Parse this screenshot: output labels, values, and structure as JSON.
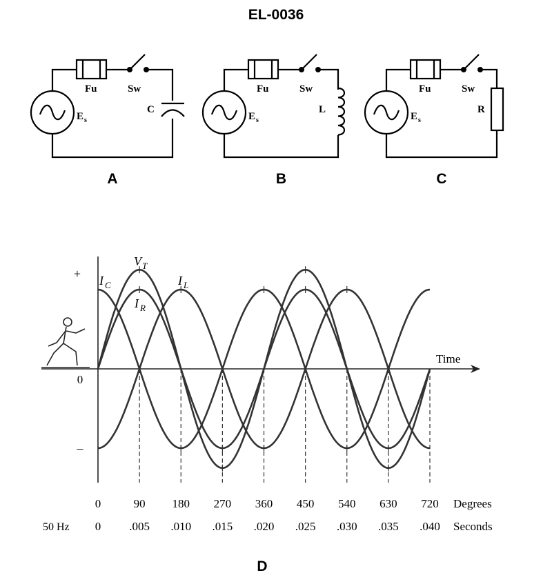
{
  "title": "EL-0036",
  "circuits": [
    {
      "panel": "A",
      "fuse": "Fu",
      "switch": "Sw",
      "source": "E",
      "source_sub": "s",
      "load": "C",
      "load_type": "capacitor"
    },
    {
      "panel": "B",
      "fuse": "Fu",
      "switch": "Sw",
      "source": "E",
      "source_sub": "s",
      "load": "L",
      "load_type": "inductor"
    },
    {
      "panel": "C",
      "fuse": "Fu",
      "switch": "Sw",
      "source": "E",
      "source_sub": "s",
      "load": "R",
      "load_type": "resistor"
    }
  ],
  "graph": {
    "panel": "D",
    "plus": "+",
    "minus": "–",
    "zero": "0",
    "time_label": "Time",
    "degrees_label": "Degrees",
    "seconds_label": "Seconds",
    "freq_label": "50 Hz",
    "degrees": [
      "0",
      "90",
      "180",
      "270",
      "360",
      "450",
      "540",
      "630",
      "720"
    ],
    "seconds": [
      "0",
      ".005",
      ".010",
      ".015",
      ".020",
      ".025",
      ".030",
      ".035",
      ".040"
    ],
    "curves": [
      {
        "name": "V",
        "sub": "T",
        "amplitude": 1.25,
        "phase_deg": 0
      },
      {
        "name": "I",
        "sub": "R",
        "amplitude": 1.0,
        "phase_deg": 0
      },
      {
        "name": "I",
        "sub": "C",
        "amplitude": 1.0,
        "phase_deg": 90
      },
      {
        "name": "I",
        "sub": "L",
        "amplitude": 1.0,
        "phase_deg": -90
      }
    ]
  }
}
